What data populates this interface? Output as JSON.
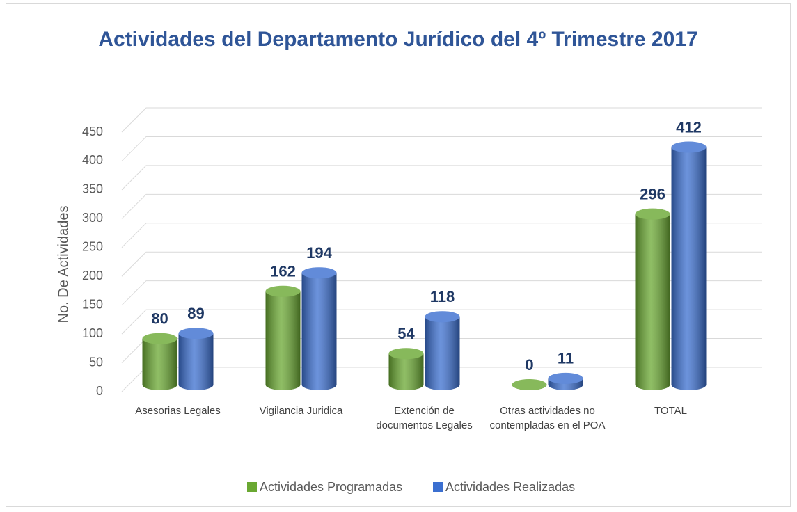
{
  "chart_data": {
    "type": "bar3d",
    "title": "Actividades del Departamento  Jurídico del 4º Trimestre 2017",
    "y_label": "No. De Actividades",
    "categories": [
      "Asesorias Legales",
      "Vigilancia Juridica",
      "Extención de documentos Legales",
      "Otras actividades no contempladas en el POA",
      "TOTAL"
    ],
    "series": [
      {
        "name": "Actividades Programadas",
        "color": "#6aa832",
        "values": [
          80,
          162,
          54,
          0,
          296
        ]
      },
      {
        "name": "Actividades Realizadas",
        "color": "#3b6fd0",
        "values": [
          89,
          194,
          118,
          11,
          412
        ]
      }
    ],
    "ylim": [
      0,
      450
    ],
    "yticks": [
      0,
      50,
      100,
      150,
      200,
      250,
      300,
      350,
      400,
      450
    ],
    "grid": true,
    "legend": "bottom"
  }
}
